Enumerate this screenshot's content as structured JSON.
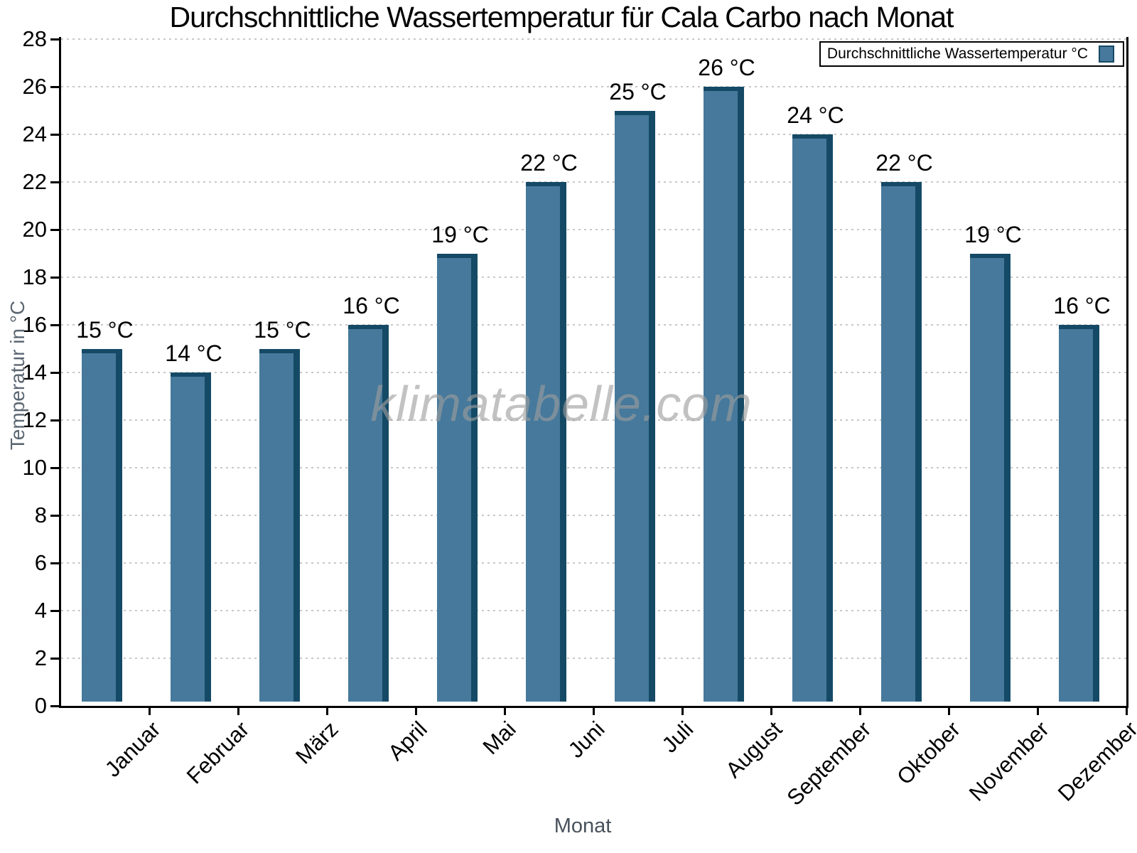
{
  "chart_data": {
    "type": "bar",
    "title": "Durchschnittliche Wassertemperatur für Cala Carbo nach Monat",
    "xlabel": "Monat",
    "ylabel": "Temperatur in °C",
    "categories": [
      "Januar",
      "Februar",
      "März",
      "April",
      "Mai",
      "Juni",
      "Juli",
      "August",
      "September",
      "Oktober",
      "November",
      "Dezember"
    ],
    "series": [
      {
        "name": "Durchschnittliche Wassertemperatur °C",
        "values": [
          15,
          14,
          15,
          16,
          19,
          22,
          25,
          26,
          24,
          22,
          19,
          16
        ]
      }
    ],
    "bar_labels": [
      "15 °C",
      "14 °C",
      "15 °C",
      "16 °C",
      "19 °C",
      "22 °C",
      "25 °C",
      "26 °C",
      "24 °C",
      "22 °C",
      "19 °C",
      "16 °C"
    ],
    "ylim": [
      0,
      28
    ],
    "ytick_step": 2,
    "ytick_labels": [
      "0",
      "2",
      "4",
      "6",
      "8",
      "10",
      "12",
      "14",
      "16",
      "18",
      "20",
      "22",
      "24",
      "26",
      "28"
    ],
    "grid": "horizontal dotted",
    "legend_position": "top-right",
    "legend_label": "Durchschnittliche Wassertemperatur °C"
  },
  "watermark": {
    "text": "klimatabelle.com"
  },
  "colors": {
    "bar_fill": "#46799B",
    "bar_edge": "#154A66",
    "grid": "#C8C8C8",
    "axis": "#000000",
    "title": "#000000",
    "tick_label": "#000000",
    "xlabel": "#49525C",
    "ylabel": "#5C6772",
    "watermark": "#9E9E9E",
    "legend_border": "#000000",
    "legend_bg": "#FFFFFF"
  }
}
